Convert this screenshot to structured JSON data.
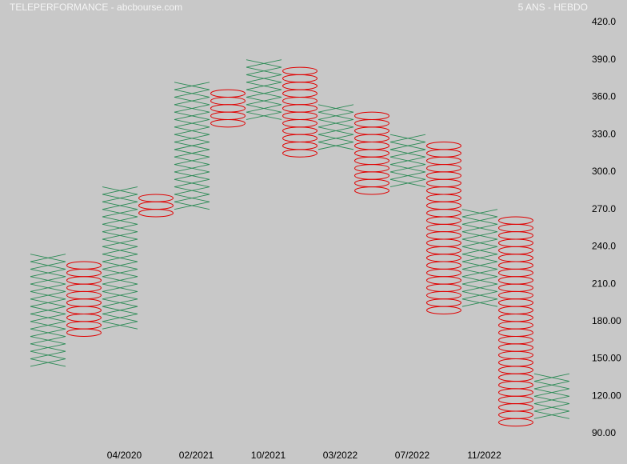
{
  "chart_data": {
    "type": "point-and-figure",
    "title": "TELEPERFORMANCE - abcbourse.com",
    "subtitle": "5 ANS - HEBDO",
    "box_size": 6,
    "x_color": "#2e8b57",
    "o_color": "#e00000",
    "categories": [
      null,
      null,
      "04/2020",
      null,
      "02/2021",
      null,
      "10/2021",
      null,
      "03/2022",
      null,
      "07/2022",
      null,
      "11/2022",
      null,
      null
    ],
    "columns": [
      {
        "type": "X",
        "low": 144,
        "high": 234
      },
      {
        "type": "O",
        "low": 168,
        "high": 228
      },
      {
        "type": "X",
        "low": 174,
        "high": 288
      },
      {
        "type": "O",
        "low": 264,
        "high": 282
      },
      {
        "type": "X",
        "low": 270,
        "high": 372
      },
      {
        "type": "O",
        "low": 336,
        "high": 366
      },
      {
        "type": "X",
        "low": 342,
        "high": 390
      },
      {
        "type": "O",
        "low": 312,
        "high": 384
      },
      {
        "type": "X",
        "low": 318,
        "high": 354
      },
      {
        "type": "O",
        "low": 282,
        "high": 348
      },
      {
        "type": "X",
        "low": 288,
        "high": 330
      },
      {
        "type": "O",
        "low": 186,
        "high": 324
      },
      {
        "type": "X",
        "low": 192,
        "high": 270
      },
      {
        "type": "O",
        "low": 96,
        "high": 264
      },
      {
        "type": "X",
        "low": 102,
        "high": 138
      }
    ],
    "ylim": [
      90,
      420
    ],
    "yticks": [
      {
        "value": 420,
        "label": "420.0"
      },
      {
        "value": 390,
        "label": "390.0"
      },
      {
        "value": 360,
        "label": "360.0"
      },
      {
        "value": 330,
        "label": "330.0"
      },
      {
        "value": 300,
        "label": "300.0"
      },
      {
        "value": 270,
        "label": "270.0"
      },
      {
        "value": 240,
        "label": "240.0"
      },
      {
        "value": 210,
        "label": "210.0"
      },
      {
        "value": 180,
        "label": "180.00"
      },
      {
        "value": 150,
        "label": "150.00"
      },
      {
        "value": 120,
        "label": "120.00"
      },
      {
        "value": 90,
        "label": "90.00"
      }
    ]
  }
}
